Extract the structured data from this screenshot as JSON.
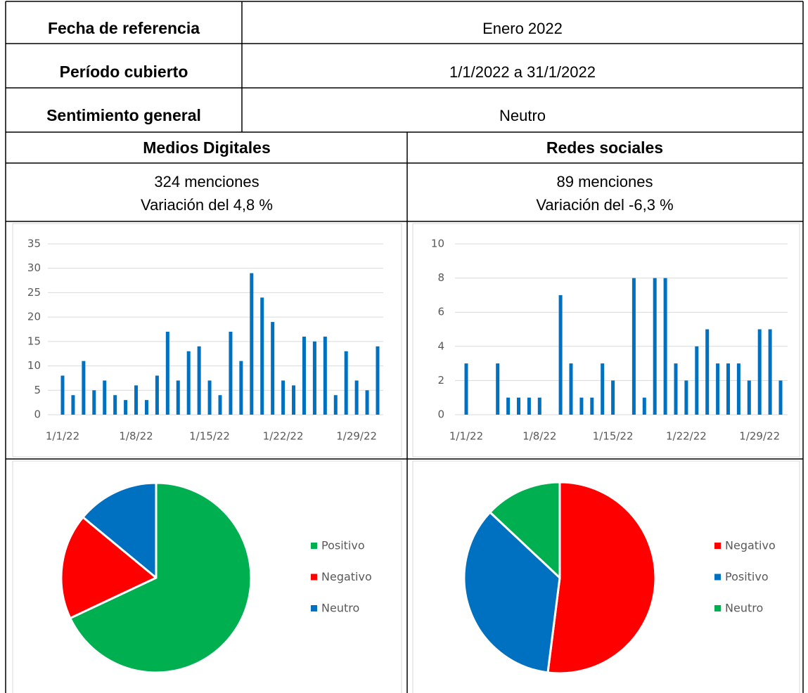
{
  "rows": [
    {
      "label": "Fecha de referencia",
      "value": "Enero 2022"
    },
    {
      "label": "Período cubierto",
      "value": "1/1/2022 a 31/1/2022"
    },
    {
      "label": "Sentimiento general",
      "value": "Neutro"
    }
  ],
  "sections": [
    {
      "title": "Medios Digitales",
      "mentions": "324 menciones",
      "variation": "Variación del 4,8 %"
    },
    {
      "title": "Redes sociales",
      "mentions": "89 menciones",
      "variation": "Variación del -6,3 %"
    }
  ],
  "chart_data": [
    {
      "type": "bar",
      "categories": [
        "1/1/22",
        null,
        null,
        null,
        null,
        null,
        null,
        "1/8/22",
        null,
        null,
        null,
        null,
        null,
        null,
        "1/15/22",
        null,
        null,
        null,
        null,
        null,
        null,
        "1/22/22",
        null,
        null,
        null,
        null,
        null,
        null,
        "1/29/22",
        null,
        null
      ],
      "values": [
        8,
        4,
        11,
        5,
        7,
        4,
        3,
        6,
        3,
        8,
        17,
        7,
        13,
        14,
        7,
        4,
        17,
        11,
        29,
        24,
        19,
        7,
        6,
        16,
        15,
        16,
        4,
        13,
        7,
        5,
        14
      ],
      "color": "#0070c0",
      "ylim": [
        0,
        35
      ],
      "yticks": [
        0,
        5,
        10,
        15,
        20,
        25,
        30,
        35
      ],
      "grid": true
    },
    {
      "type": "bar",
      "categories": [
        "1/1/22",
        null,
        null,
        null,
        null,
        null,
        null,
        "1/8/22",
        null,
        null,
        null,
        null,
        null,
        null,
        "1/15/22",
        null,
        null,
        null,
        null,
        null,
        null,
        "1/22/22",
        null,
        null,
        null,
        null,
        null,
        null,
        "1/29/22",
        null,
        null
      ],
      "values": [
        3,
        0,
        0,
        3,
        1,
        1,
        1,
        1,
        0,
        7,
        3,
        1,
        1,
        3,
        2,
        0,
        8,
        1,
        8,
        8,
        3,
        2,
        4,
        5,
        3,
        3,
        3,
        2,
        5,
        5,
        2
      ],
      "color": "#0070c0",
      "ylim": [
        0,
        10
      ],
      "yticks": [
        0,
        2,
        4,
        6,
        8,
        10
      ],
      "grid": true
    },
    {
      "type": "pie",
      "categories": [
        "Positivo",
        "Negativo",
        "Neutro"
      ],
      "values": [
        68,
        18,
        14
      ],
      "colors": [
        "#00b050",
        "#ff0000",
        "#0070c0"
      ],
      "legend": "right"
    },
    {
      "type": "pie",
      "categories": [
        "Negativo",
        "Positivo",
        "Neutro"
      ],
      "values": [
        52,
        35,
        13
      ],
      "colors": [
        "#ff0000",
        "#0070c0",
        "#00b050"
      ],
      "legend": "right"
    }
  ]
}
